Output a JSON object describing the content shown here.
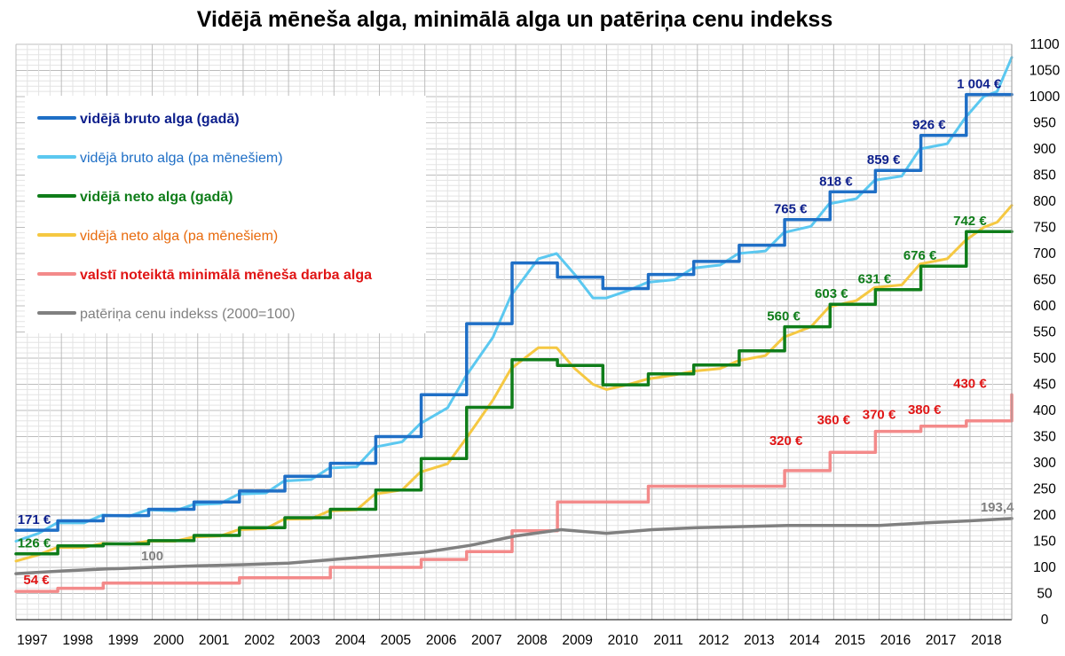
{
  "chart_data": {
    "type": "line",
    "title": "Vidējā mēneša alga, minimālā alga un patēriņa cenu indekss",
    "xlabel": "",
    "ylabel": "",
    "x_ticks": [
      "1997",
      "1998",
      "1999",
      "2000",
      "2001",
      "2002",
      "2003",
      "2004",
      "2005",
      "2006",
      "2007",
      "2008",
      "2009",
      "2010",
      "2011",
      "2012",
      "2013",
      "2014",
      "2015",
      "2016",
      "2017",
      "2018"
    ],
    "xlim": [
      1997,
      2018.92
    ],
    "ylim": [
      0,
      1100
    ],
    "y_ticks": [
      0,
      50,
      100,
      150,
      200,
      250,
      300,
      350,
      400,
      450,
      500,
      550,
      600,
      650,
      700,
      750,
      800,
      850,
      900,
      950,
      1000,
      1050,
      1100
    ],
    "grid": true,
    "legend_position": "top-left",
    "series": [
      {
        "name": "vidējā bruto alga (gadā)",
        "color": "#1f6fc6",
        "style": "step-annual",
        "x": [
          1997,
          1998,
          1999,
          2000,
          2001,
          2002,
          2003,
          2004,
          2005,
          2006,
          2007,
          2008,
          2009,
          2010,
          2011,
          2012,
          2013,
          2014,
          2015,
          2016,
          2017,
          2018
        ],
        "values": [
          171,
          189,
          199,
          211,
          225,
          246,
          274,
          299,
          350,
          430,
          566,
          682,
          655,
          633,
          660,
          685,
          716,
          765,
          818,
          859,
          926,
          1004
        ]
      },
      {
        "name": "vidējā bruto alga (pa mēnešiem)",
        "color": "#5bc8f0",
        "style": "line",
        "x": [
          1997,
          1997.5,
          1997.9,
          1998.5,
          1998.9,
          1999.5,
          1999.9,
          2000.5,
          2000.9,
          2001.5,
          2001.9,
          2002.5,
          2002.9,
          2003.5,
          2003.9,
          2004.5,
          2004.9,
          2005.5,
          2005.9,
          2006.5,
          2006.9,
          2007.5,
          2007.9,
          2008.5,
          2008.9,
          2009.3,
          2009.7,
          2010,
          2010.5,
          2010.9,
          2011.5,
          2011.9,
          2012.5,
          2012.9,
          2013.5,
          2013.9,
          2014.5,
          2014.9,
          2015.5,
          2015.9,
          2016.5,
          2016.9,
          2017.5,
          2017.9,
          2018.3,
          2018.6,
          2018.92
        ],
        "values": [
          150,
          165,
          185,
          185,
          200,
          198,
          210,
          208,
          220,
          222,
          240,
          242,
          265,
          268,
          290,
          292,
          330,
          340,
          375,
          405,
          465,
          540,
          620,
          690,
          700,
          660,
          615,
          615,
          630,
          645,
          650,
          672,
          678,
          700,
          705,
          740,
          752,
          795,
          805,
          840,
          848,
          900,
          910,
          960,
          1000,
          1010,
          1075
        ]
      },
      {
        "name": "vidējā neto alga (gadā)",
        "color": "#0f7d1a",
        "style": "step-annual",
        "x": [
          1997,
          1998,
          1999,
          2000,
          2001,
          2002,
          2003,
          2004,
          2005,
          2006,
          2007,
          2008,
          2009,
          2010,
          2011,
          2012,
          2013,
          2014,
          2015,
          2016,
          2017,
          2018
        ],
        "values": [
          126,
          141,
          145,
          151,
          161,
          176,
          195,
          211,
          248,
          308,
          406,
          497,
          486,
          449,
          470,
          487,
          514,
          560,
          603,
          631,
          676,
          742
        ]
      },
      {
        "name": "vidējā neto alga (pa mēnešiem)",
        "color": "#f5c842",
        "style": "line",
        "x": [
          1997,
          1997.5,
          1997.9,
          1998.5,
          1998.9,
          1999.5,
          1999.9,
          2000.5,
          2000.9,
          2001.5,
          2001.9,
          2002.5,
          2002.9,
          2003.5,
          2003.9,
          2004.5,
          2004.9,
          2005.5,
          2005.9,
          2006.5,
          2006.9,
          2007.5,
          2007.9,
          2008.5,
          2008.9,
          2009.3,
          2009.7,
          2010,
          2010.5,
          2010.9,
          2011.5,
          2011.9,
          2012.5,
          2012.9,
          2013.5,
          2013.9,
          2014.5,
          2014.9,
          2015.5,
          2015.9,
          2016.5,
          2016.9,
          2017.5,
          2017.9,
          2018.3,
          2018.6,
          2018.92
        ],
        "values": [
          112,
          124,
          138,
          138,
          146,
          144,
          150,
          150,
          158,
          160,
          172,
          174,
          192,
          193,
          208,
          210,
          240,
          248,
          282,
          298,
          345,
          420,
          480,
          520,
          520,
          480,
          450,
          440,
          450,
          460,
          468,
          475,
          480,
          495,
          505,
          540,
          560,
          598,
          610,
          635,
          640,
          680,
          690,
          725,
          750,
          760,
          792
        ]
      },
      {
        "name": "valstī noteiktā minimālā mēneša darba alga",
        "color": "#f38a8a",
        "style": "step",
        "x": [
          1997,
          1997.92,
          1998.92,
          2000.92,
          2001.92,
          2002.92,
          2003.92,
          2005.92,
          2006.92,
          2007.92,
          2008.92,
          2010.92,
          2013.92,
          2014.92,
          2015.92,
          2016.92,
          2017.92,
          2018.92
        ],
        "values": [
          54,
          60,
          70,
          70,
          80,
          80,
          100,
          115,
          130,
          170,
          225,
          255,
          285,
          320,
          360,
          370,
          380,
          430
        ]
      },
      {
        "name": "patēriņa cenu indekss (2000=100)",
        "color": "#808080",
        "style": "line",
        "x": [
          1997,
          1998,
          1999,
          2000,
          2001,
          2002,
          2003,
          2004,
          2005,
          2006,
          2007,
          2008,
          2009,
          2010,
          2011,
          2012,
          2013,
          2014,
          2015,
          2016,
          2017,
          2018,
          2018.92
        ],
        "values": [
          88,
          93,
          97,
          100,
          103,
          105,
          108,
          115,
          122,
          129,
          142,
          160,
          172,
          165,
          172,
          176,
          178,
          180,
          180,
          180,
          185,
          189,
          193.4
        ]
      }
    ],
    "annotations": {
      "gross": [
        {
          "x": 1997.4,
          "y": 171,
          "text": "171 €"
        },
        {
          "x": 2014.05,
          "y": 765,
          "text": "765 €"
        },
        {
          "x": 2015.05,
          "y": 818,
          "text": "818 €"
        },
        {
          "x": 2016.1,
          "y": 859,
          "text": "859 €"
        },
        {
          "x": 2017.1,
          "y": 926,
          "text": "926 €"
        },
        {
          "x": 2018.2,
          "y": 1004,
          "text": "1 004 €"
        }
      ],
      "net": [
        {
          "x": 1997.4,
          "y": 126,
          "text": "126 €"
        },
        {
          "x": 2013.9,
          "y": 560,
          "text": "560 €"
        },
        {
          "x": 2014.95,
          "y": 603,
          "text": "603 €"
        },
        {
          "x": 2015.9,
          "y": 631,
          "text": "631 €"
        },
        {
          "x": 2016.9,
          "y": 676,
          "text": "676 €"
        },
        {
          "x": 2018.0,
          "y": 742,
          "text": "742 €"
        }
      ],
      "minimum": [
        {
          "x": 1997.45,
          "y": 54,
          "text": "54 €"
        },
        {
          "x": 2013.95,
          "y": 320,
          "text": "320 €"
        },
        {
          "x": 2015.0,
          "y": 360,
          "text": "360 €"
        },
        {
          "x": 2016.0,
          "y": 370,
          "text": "370 €"
        },
        {
          "x": 2017.0,
          "y": 380,
          "text": "380 €"
        },
        {
          "x": 2018.0,
          "y": 430,
          "text": "430 €"
        }
      ],
      "cpi": [
        {
          "x": 2000,
          "y": 100,
          "text": "100"
        },
        {
          "x": 2018.6,
          "y": 193.4,
          "text": "193,4"
        }
      ]
    },
    "annotation_colors": {
      "gross": "#0d1f8c",
      "net": "#0f7d1a",
      "minimum": "#e01515",
      "cpi": "#808080"
    },
    "legend_text_colors": [
      "#0d1f8c",
      "#1f6fc6",
      "#0f7d1a",
      "#e86a0c",
      "#e01515",
      "#808080"
    ]
  }
}
